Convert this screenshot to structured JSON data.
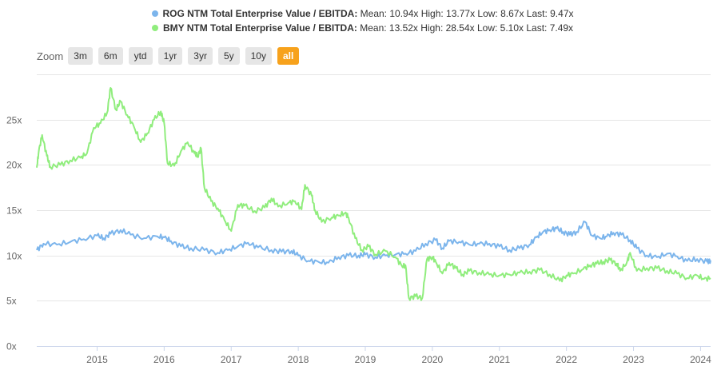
{
  "chart_data": {
    "type": "line",
    "title": "",
    "xlabel": "",
    "ylabel": "",
    "x_ticks": [
      "2015",
      "2016",
      "2017",
      "2018",
      "2019",
      "2020",
      "2021",
      "2022",
      "2023",
      "2024"
    ],
    "y_ticks": [
      "0x",
      "5x",
      "10x",
      "15x",
      "20x",
      "25x"
    ],
    "ylim": [
      0,
      30
    ],
    "xlim": [
      2014.1,
      2024.15
    ],
    "series": [
      {
        "name": "ROG NTM Total Enterprise Value / EBITDA",
        "legend_stats": "Mean: 10.94x High: 13.77x Low: 8.67x Last: 9.47x",
        "color": "#7cb5ec",
        "points": [
          [
            2014.1,
            10.6
          ],
          [
            2014.2,
            11.3
          ],
          [
            2014.4,
            11.2
          ],
          [
            2014.6,
            11.5
          ],
          [
            2014.8,
            11.8
          ],
          [
            2015.0,
            12.2
          ],
          [
            2015.1,
            11.9
          ],
          [
            2015.2,
            12.4
          ],
          [
            2015.35,
            12.8
          ],
          [
            2015.5,
            12.3
          ],
          [
            2015.7,
            11.9
          ],
          [
            2015.9,
            12.1
          ],
          [
            2016.0,
            12.0
          ],
          [
            2016.1,
            11.6
          ],
          [
            2016.25,
            11.0
          ],
          [
            2016.4,
            10.8
          ],
          [
            2016.6,
            10.6
          ],
          [
            2016.8,
            10.3
          ],
          [
            2016.95,
            10.6
          ],
          [
            2017.1,
            11.0
          ],
          [
            2017.25,
            11.4
          ],
          [
            2017.4,
            10.9
          ],
          [
            2017.6,
            10.6
          ],
          [
            2017.75,
            10.4
          ],
          [
            2017.9,
            10.5
          ],
          [
            2018.0,
            10.0
          ],
          [
            2018.15,
            9.4
          ],
          [
            2018.3,
            9.3
          ],
          [
            2018.45,
            9.2
          ],
          [
            2018.6,
            9.8
          ],
          [
            2018.75,
            10.0
          ],
          [
            2018.9,
            10.0
          ],
          [
            2019.0,
            10.1
          ],
          [
            2019.15,
            9.8
          ],
          [
            2019.3,
            10.0
          ],
          [
            2019.45,
            10.1
          ],
          [
            2019.6,
            10.2
          ],
          [
            2019.75,
            10.5
          ],
          [
            2019.9,
            11.3
          ],
          [
            2020.05,
            11.7
          ],
          [
            2020.15,
            10.8
          ],
          [
            2020.25,
            11.6
          ],
          [
            2020.4,
            11.5
          ],
          [
            2020.55,
            11.2
          ],
          [
            2020.7,
            11.3
          ],
          [
            2020.85,
            11.3
          ],
          [
            2021.0,
            11.0
          ],
          [
            2021.15,
            10.6
          ],
          [
            2021.3,
            10.8
          ],
          [
            2021.45,
            11.2
          ],
          [
            2021.55,
            12.0
          ],
          [
            2021.65,
            12.6
          ],
          [
            2021.75,
            12.8
          ],
          [
            2021.85,
            13.0
          ],
          [
            2021.95,
            12.6
          ],
          [
            2022.05,
            12.3
          ],
          [
            2022.15,
            12.6
          ],
          [
            2022.28,
            13.7
          ],
          [
            2022.38,
            12.2
          ],
          [
            2022.5,
            11.9
          ],
          [
            2022.6,
            12.1
          ],
          [
            2022.7,
            12.5
          ],
          [
            2022.82,
            12.3
          ],
          [
            2022.95,
            11.7
          ],
          [
            2023.05,
            10.8
          ],
          [
            2023.2,
            10.0
          ],
          [
            2023.35,
            9.8
          ],
          [
            2023.5,
            10.2
          ],
          [
            2023.65,
            9.9
          ],
          [
            2023.8,
            9.4
          ],
          [
            2023.95,
            9.6
          ],
          [
            2024.1,
            9.3
          ],
          [
            2024.15,
            9.47
          ]
        ]
      },
      {
        "name": "BMY NTM Total Enterprise Value / EBITDA",
        "legend_stats": "Mean: 13.52x High: 28.54x Low: 5.10x Last: 7.49x",
        "color": "#90ed7d",
        "points": [
          [
            2014.1,
            19.7
          ],
          [
            2014.13,
            21.5
          ],
          [
            2014.18,
            23.3
          ],
          [
            2014.25,
            21.0
          ],
          [
            2014.3,
            19.8
          ],
          [
            2014.45,
            20.0
          ],
          [
            2014.6,
            20.5
          ],
          [
            2014.75,
            20.8
          ],
          [
            2014.85,
            21.3
          ],
          [
            2014.95,
            24.1
          ],
          [
            2015.05,
            24.6
          ],
          [
            2015.15,
            25.8
          ],
          [
            2015.2,
            28.5
          ],
          [
            2015.28,
            26.1
          ],
          [
            2015.35,
            27.0
          ],
          [
            2015.45,
            25.5
          ],
          [
            2015.55,
            24.2
          ],
          [
            2015.65,
            22.5
          ],
          [
            2015.75,
            23.5
          ],
          [
            2015.85,
            25.0
          ],
          [
            2015.95,
            25.9
          ],
          [
            2016.0,
            24.6
          ],
          [
            2016.05,
            20.2
          ],
          [
            2016.15,
            19.9
          ],
          [
            2016.25,
            21.5
          ],
          [
            2016.35,
            22.5
          ],
          [
            2016.45,
            21.3
          ],
          [
            2016.5,
            21.0
          ],
          [
            2016.55,
            21.8
          ],
          [
            2016.6,
            17.5
          ],
          [
            2016.7,
            16.0
          ],
          [
            2016.8,
            15.2
          ],
          [
            2016.9,
            13.9
          ],
          [
            2017.0,
            12.7
          ],
          [
            2017.1,
            15.6
          ],
          [
            2017.2,
            15.5
          ],
          [
            2017.35,
            14.9
          ],
          [
            2017.5,
            15.3
          ],
          [
            2017.6,
            16.3
          ],
          [
            2017.7,
            15.4
          ],
          [
            2017.85,
            15.8
          ],
          [
            2017.95,
            16.0
          ],
          [
            2018.05,
            15.1
          ],
          [
            2018.1,
            17.8
          ],
          [
            2018.2,
            16.6
          ],
          [
            2018.25,
            15.0
          ],
          [
            2018.35,
            13.7
          ],
          [
            2018.5,
            14.2
          ],
          [
            2018.6,
            14.4
          ],
          [
            2018.7,
            14.7
          ],
          [
            2018.75,
            14.2
          ],
          [
            2018.85,
            11.9
          ],
          [
            2018.95,
            10.6
          ],
          [
            2019.05,
            11.0
          ],
          [
            2019.15,
            10.1
          ],
          [
            2019.3,
            10.5
          ],
          [
            2019.45,
            9.8
          ],
          [
            2019.55,
            8.8
          ],
          [
            2019.6,
            8.9
          ],
          [
            2019.65,
            5.3
          ],
          [
            2019.75,
            5.5
          ],
          [
            2019.85,
            5.3
          ],
          [
            2019.92,
            9.6
          ],
          [
            2020.0,
            9.8
          ],
          [
            2020.05,
            9.3
          ],
          [
            2020.15,
            8.0
          ],
          [
            2020.25,
            9.2
          ],
          [
            2020.35,
            8.6
          ],
          [
            2020.45,
            7.9
          ],
          [
            2020.55,
            8.3
          ],
          [
            2020.7,
            8.1
          ],
          [
            2020.85,
            7.9
          ],
          [
            2021.0,
            7.8
          ],
          [
            2021.15,
            7.9
          ],
          [
            2021.3,
            8.1
          ],
          [
            2021.45,
            8.2
          ],
          [
            2021.6,
            8.4
          ],
          [
            2021.75,
            7.9
          ],
          [
            2021.9,
            7.2
          ],
          [
            2022.0,
            7.8
          ],
          [
            2022.1,
            8.0
          ],
          [
            2022.25,
            8.5
          ],
          [
            2022.35,
            8.9
          ],
          [
            2022.45,
            9.1
          ],
          [
            2022.55,
            9.3
          ],
          [
            2022.65,
            9.5
          ],
          [
            2022.75,
            9.1
          ],
          [
            2022.8,
            8.3
          ],
          [
            2022.9,
            9.2
          ],
          [
            2022.95,
            10.3
          ],
          [
            2023.05,
            8.3
          ],
          [
            2023.2,
            8.6
          ],
          [
            2023.35,
            8.6
          ],
          [
            2023.5,
            8.3
          ],
          [
            2023.65,
            8.0
          ],
          [
            2023.8,
            7.5
          ],
          [
            2023.95,
            7.8
          ],
          [
            2024.05,
            7.4
          ],
          [
            2024.15,
            7.49
          ]
        ]
      }
    ]
  },
  "zoom": {
    "label": "Zoom",
    "buttons": [
      "3m",
      "6m",
      "ytd",
      "1yr",
      "3yr",
      "5y",
      "10y",
      "all"
    ],
    "active": "all",
    "active_color": "#f7a21c"
  }
}
